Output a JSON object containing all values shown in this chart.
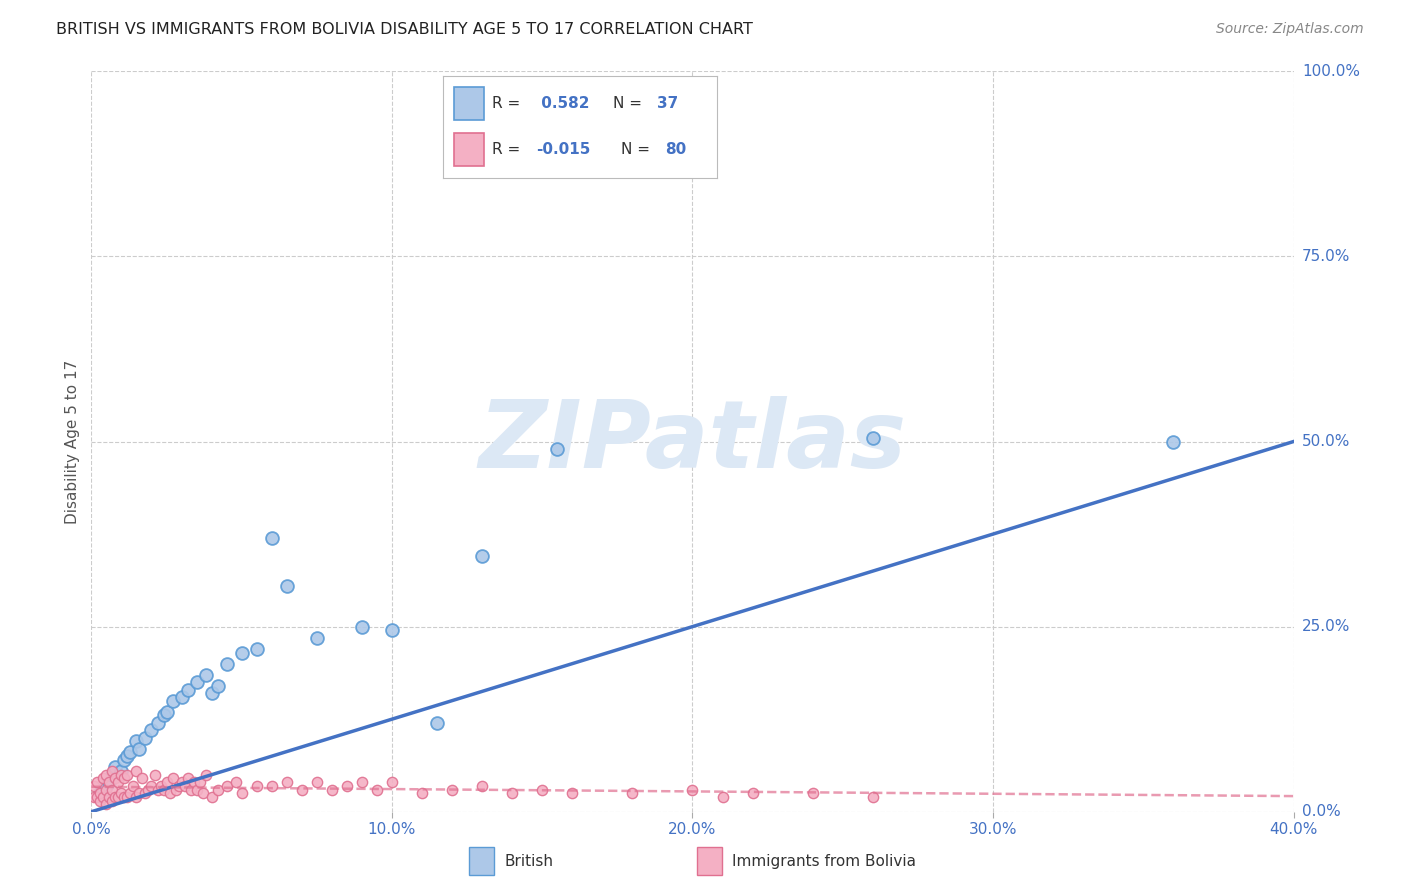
{
  "title": "BRITISH VS IMMIGRANTS FROM BOLIVIA DISABILITY AGE 5 TO 17 CORRELATION CHART",
  "source": "Source: ZipAtlas.com",
  "ylabel": "Disability Age 5 to 17",
  "xlim": [
    0.0,
    0.4
  ],
  "ylim": [
    0.0,
    1.0
  ],
  "xticks": [
    0.0,
    0.1,
    0.2,
    0.3,
    0.4
  ],
  "xtick_labels": [
    "0.0%",
    "10.0%",
    "20.0%",
    "30.0%",
    "40.0%"
  ],
  "ytick_positions": [
    0.0,
    0.25,
    0.5,
    0.75,
    1.0
  ],
  "ytick_labels": [
    "0.0%",
    "25.0%",
    "50.0%",
    "75.0%",
    "100.0%"
  ],
  "british_R": 0.582,
  "british_N": 37,
  "bolivia_R": -0.015,
  "bolivia_N": 80,
  "british_fill": "#adc8e8",
  "british_edge": "#5b9bd5",
  "bolivia_fill": "#f4b0c4",
  "bolivia_edge": "#e07090",
  "british_line": "#4472c4",
  "bolivia_line_color": "#f4b0c4",
  "bolivia_line_edge": "#e07090",
  "axis_color": "#4472c4",
  "grid_color": "#cccccc",
  "title_color": "#222222",
  "watermark_color": "#dce8f5",
  "british_x": [
    0.003,
    0.004,
    0.005,
    0.006,
    0.007,
    0.008,
    0.01,
    0.011,
    0.012,
    0.013,
    0.015,
    0.016,
    0.018,
    0.02,
    0.022,
    0.024,
    0.025,
    0.027,
    0.03,
    0.032,
    0.035,
    0.038,
    0.04,
    0.042,
    0.045,
    0.05,
    0.055,
    0.06,
    0.065,
    0.075,
    0.09,
    0.1,
    0.115,
    0.13,
    0.155,
    0.26,
    0.36
  ],
  "british_y": [
    0.025,
    0.03,
    0.035,
    0.04,
    0.05,
    0.06,
    0.055,
    0.07,
    0.075,
    0.08,
    0.095,
    0.085,
    0.1,
    0.11,
    0.12,
    0.13,
    0.135,
    0.15,
    0.155,
    0.165,
    0.175,
    0.185,
    0.16,
    0.17,
    0.2,
    0.215,
    0.22,
    0.37,
    0.305,
    0.235,
    0.25,
    0.245,
    0.12,
    0.345,
    0.49,
    0.505,
    0.5
  ],
  "bolivia_x": [
    0.001,
    0.001,
    0.002,
    0.002,
    0.003,
    0.003,
    0.004,
    0.004,
    0.005,
    0.005,
    0.005,
    0.006,
    0.006,
    0.007,
    0.007,
    0.007,
    0.008,
    0.008,
    0.009,
    0.009,
    0.01,
    0.01,
    0.011,
    0.011,
    0.012,
    0.012,
    0.013,
    0.014,
    0.015,
    0.015,
    0.016,
    0.017,
    0.018,
    0.019,
    0.02,
    0.021,
    0.022,
    0.023,
    0.024,
    0.025,
    0.026,
    0.027,
    0.028,
    0.029,
    0.03,
    0.031,
    0.032,
    0.033,
    0.034,
    0.035,
    0.036,
    0.037,
    0.038,
    0.04,
    0.042,
    0.045,
    0.048,
    0.05,
    0.055,
    0.06,
    0.065,
    0.07,
    0.075,
    0.08,
    0.085,
    0.09,
    0.095,
    0.1,
    0.11,
    0.12,
    0.13,
    0.14,
    0.15,
    0.16,
    0.18,
    0.2,
    0.21,
    0.22,
    0.24,
    0.26
  ],
  "bolivia_y": [
    0.02,
    0.035,
    0.02,
    0.04,
    0.015,
    0.025,
    0.02,
    0.045,
    0.01,
    0.03,
    0.05,
    0.02,
    0.04,
    0.015,
    0.03,
    0.055,
    0.02,
    0.045,
    0.02,
    0.04,
    0.025,
    0.05,
    0.02,
    0.045,
    0.02,
    0.05,
    0.025,
    0.035,
    0.02,
    0.055,
    0.025,
    0.045,
    0.025,
    0.03,
    0.035,
    0.05,
    0.03,
    0.035,
    0.03,
    0.04,
    0.025,
    0.045,
    0.03,
    0.035,
    0.04,
    0.035,
    0.045,
    0.03,
    0.04,
    0.03,
    0.04,
    0.025,
    0.05,
    0.02,
    0.03,
    0.035,
    0.04,
    0.025,
    0.035,
    0.035,
    0.04,
    0.03,
    0.04,
    0.03,
    0.035,
    0.04,
    0.03,
    0.04,
    0.025,
    0.03,
    0.035,
    0.025,
    0.03,
    0.025,
    0.025,
    0.03,
    0.02,
    0.025,
    0.025,
    0.02
  ]
}
